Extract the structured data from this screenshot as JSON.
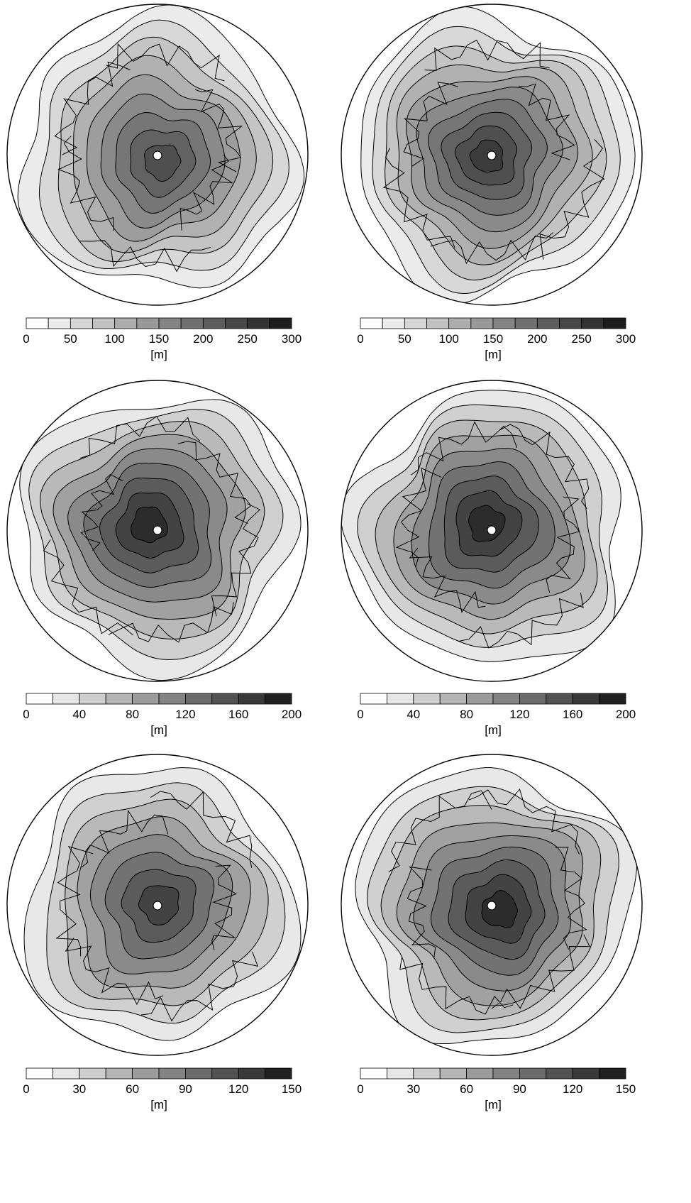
{
  "chart_data": [
    {
      "type": "heatmap",
      "colorbar": {
        "ticks": [
          "0",
          "50",
          "100",
          "150",
          "200",
          "250",
          "300"
        ],
        "unit": "[m]",
        "levels": 12,
        "min": 0,
        "max": 300
      },
      "contour_levels": [
        1,
        2,
        3,
        4,
        5,
        6,
        7,
        8,
        9
      ],
      "center_level": 8
    },
    {
      "type": "heatmap",
      "colorbar": {
        "ticks": [
          "0",
          "50",
          "100",
          "150",
          "200",
          "250",
          "300"
        ],
        "unit": "[m]",
        "levels": 12,
        "min": 0,
        "max": 300
      },
      "contour_levels": [
        1,
        2,
        3,
        4,
        5,
        6,
        7,
        8,
        9,
        10
      ],
      "center_level": 9
    },
    {
      "type": "heatmap",
      "colorbar": {
        "ticks": [
          "0",
          "40",
          "80",
          "120",
          "160",
          "200"
        ],
        "unit": "[m]",
        "levels": 10,
        "min": 0,
        "max": 200
      },
      "contour_levels": [
        1,
        2,
        3,
        4,
        5,
        6,
        7,
        8,
        9
      ],
      "center_level": 8
    },
    {
      "type": "heatmap",
      "colorbar": {
        "ticks": [
          "0",
          "40",
          "80",
          "120",
          "160",
          "200"
        ],
        "unit": "[m]",
        "levels": 10,
        "min": 0,
        "max": 200
      },
      "contour_levels": [
        1,
        2,
        3,
        4,
        5,
        6,
        7,
        8,
        9
      ],
      "center_level": 8
    },
    {
      "type": "heatmap",
      "colorbar": {
        "ticks": [
          "0",
          "30",
          "60",
          "90",
          "120",
          "150"
        ],
        "unit": "[m]",
        "levels": 10,
        "min": 0,
        "max": 150
      },
      "contour_levels": [
        1,
        2,
        3,
        4,
        5,
        6,
        7,
        8
      ],
      "center_level": 7
    },
    {
      "type": "heatmap",
      "colorbar": {
        "ticks": [
          "0",
          "30",
          "60",
          "90",
          "120",
          "150"
        ],
        "unit": "[m]",
        "levels": 10,
        "min": 0,
        "max": 150
      },
      "contour_levels": [
        1,
        2,
        3,
        4,
        5,
        6,
        7,
        8,
        9
      ],
      "center_level": 8
    }
  ]
}
